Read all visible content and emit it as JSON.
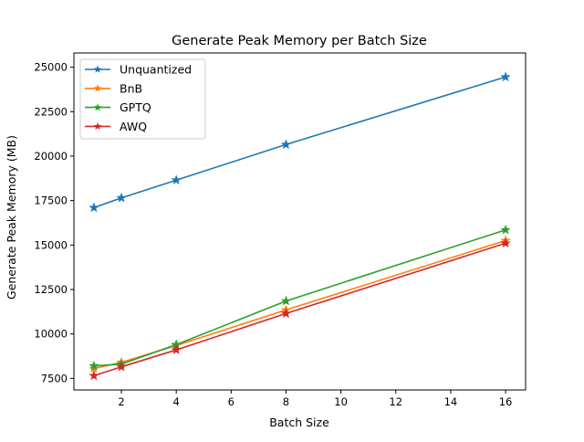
{
  "chart_data": {
    "type": "line",
    "title": "Generate Peak Memory per Batch Size",
    "xlabel": "Batch Size",
    "ylabel": "Generate Peak Memory (MB)",
    "xlim": [
      0.27,
      16.73
    ],
    "ylim": [
      6850,
      25800
    ],
    "xticks": [
      2,
      4,
      6,
      8,
      10,
      12,
      14,
      16
    ],
    "yticks": [
      7500,
      10000,
      12500,
      15000,
      17500,
      20000,
      22500,
      25000
    ],
    "grid": false,
    "legend_position": "top-left",
    "marker": "star",
    "x": [
      1,
      2,
      4,
      8,
      16
    ],
    "series": [
      {
        "name": "Unquantized",
        "color": "#1f77b4",
        "values": [
          17100,
          17650,
          18650,
          20650,
          24450
        ]
      },
      {
        "name": "BnB",
        "color": "#ff7f0e",
        "values": [
          8050,
          8400,
          9350,
          11350,
          15250
        ]
      },
      {
        "name": "GPTQ",
        "color": "#2ca02c",
        "values": [
          8200,
          8300,
          9400,
          11850,
          15850
        ]
      },
      {
        "name": "AWQ",
        "color": "#d62728",
        "values": [
          7650,
          8150,
          9100,
          11150,
          15100
        ]
      }
    ]
  }
}
